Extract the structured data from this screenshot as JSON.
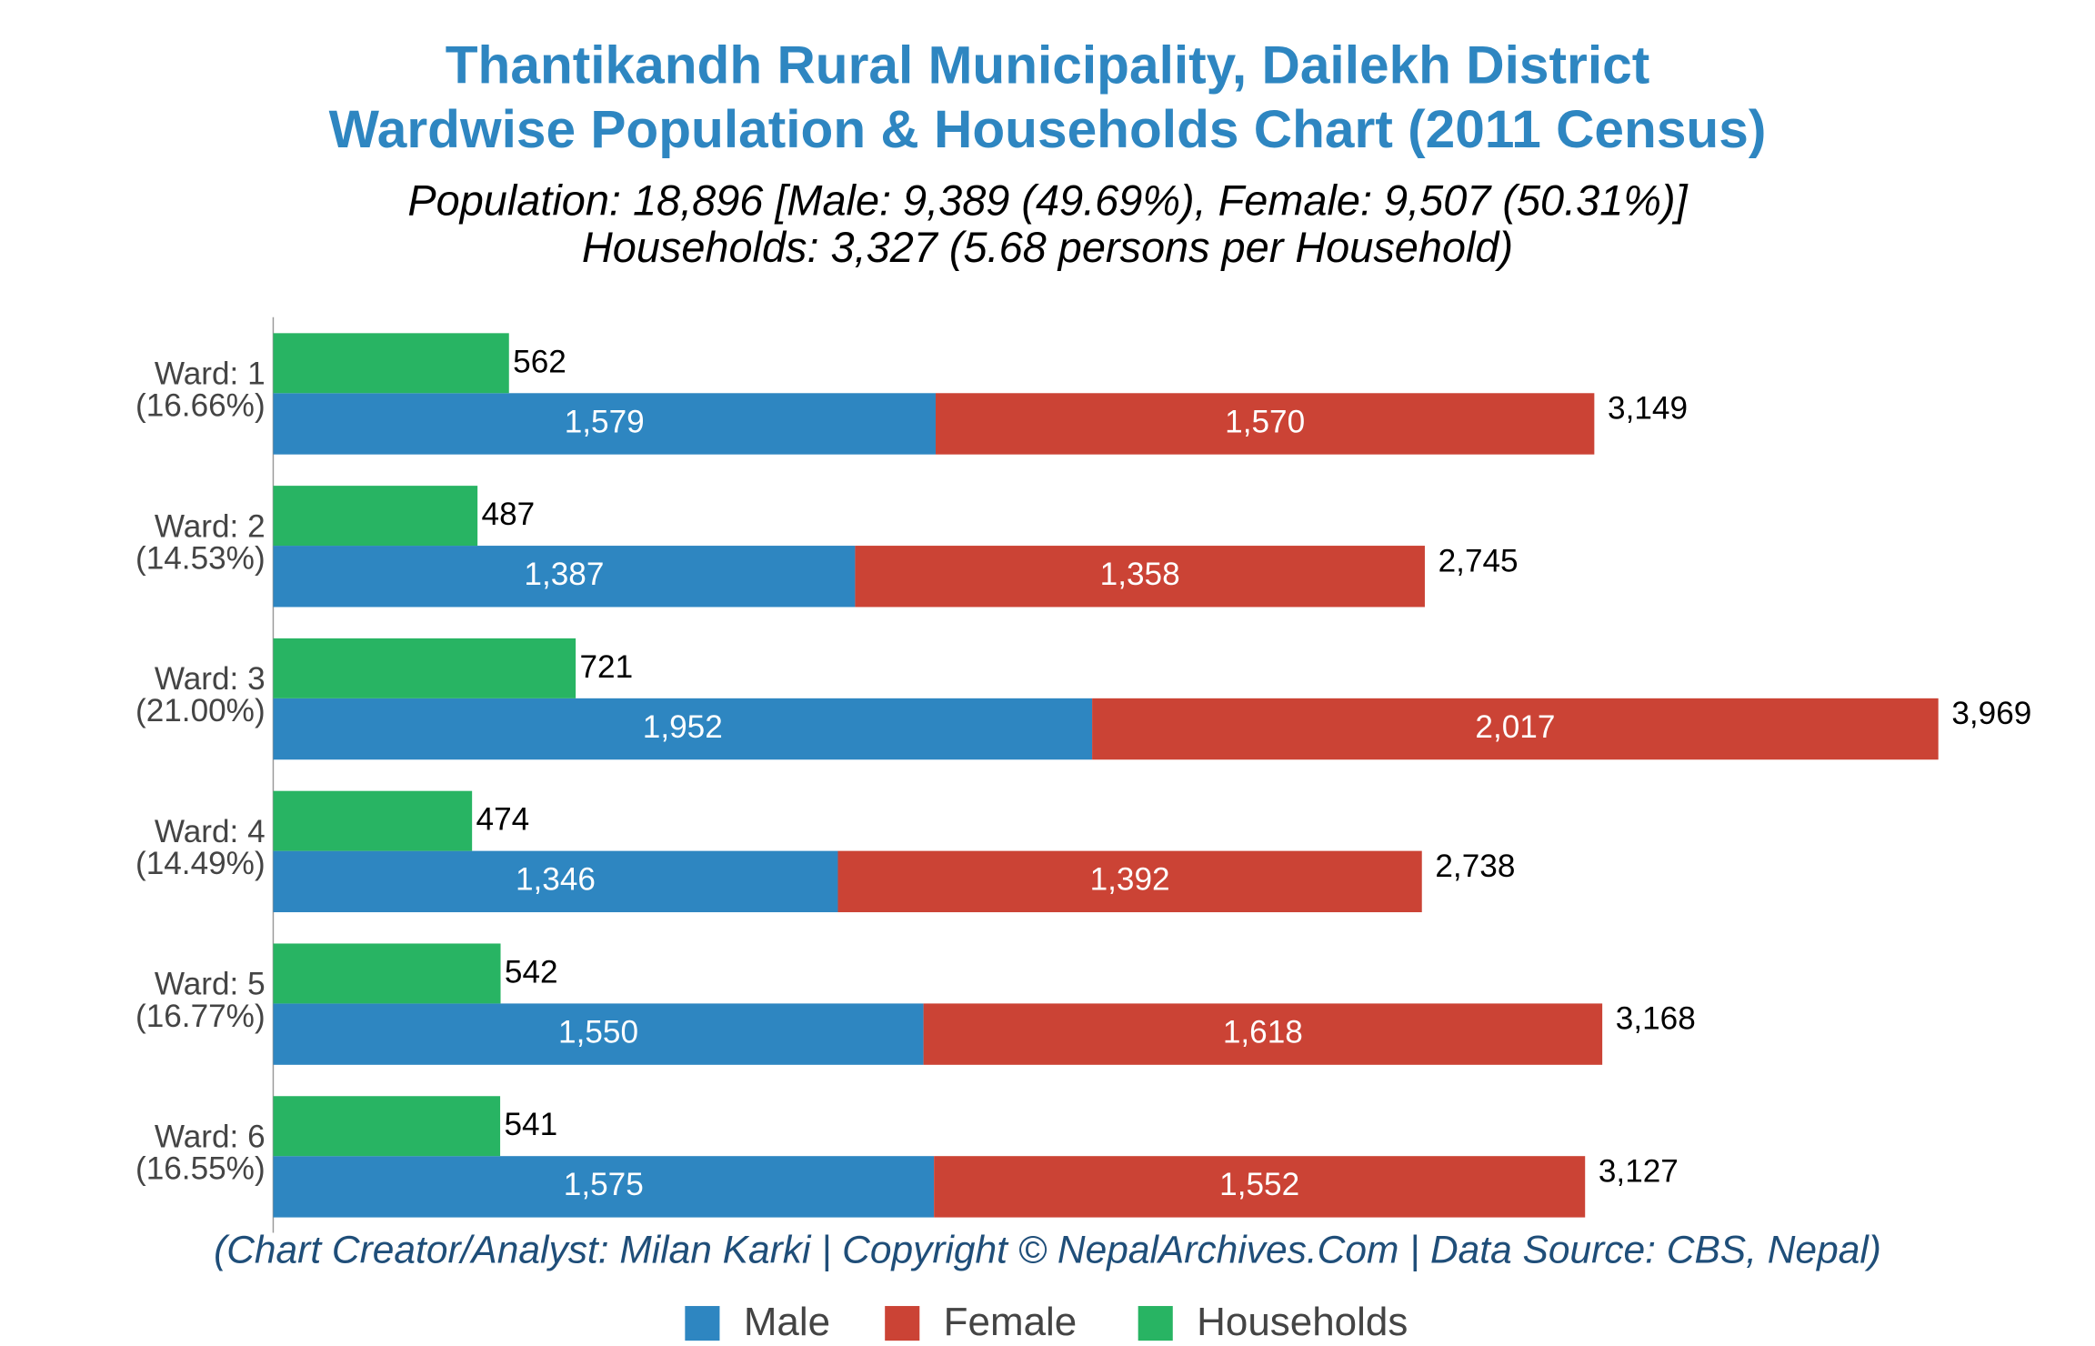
{
  "chart_data": {
    "type": "bar",
    "orientation": "horizontal",
    "title": [
      "Thantikandh Rural Municipality, Dailekh District",
      "Wardwise Population & Households Chart (2011 Census)"
    ],
    "subtitle": [
      "Population: 18,896 [Male: 9,389 (49.69%), Female: 9,507 (50.31%)]",
      "Households: 3,327 (5.68 persons per Household)"
    ],
    "footer": "(Chart Creator/Analyst: Milan Karki | Copyright © NepalArchives.Com | Data Source: CBS, Nepal)",
    "categories": [
      "Ward: 1",
      "Ward: 2",
      "Ward: 3",
      "Ward: 4",
      "Ward: 5",
      "Ward: 6"
    ],
    "category_shares": [
      "(16.66%)",
      "(14.53%)",
      "(21.00%)",
      "(14.49%)",
      "(16.77%)",
      "(16.55%)"
    ],
    "series": [
      {
        "name": "Male",
        "color": "#2e86c1",
        "stack": "population",
        "values": [
          1579,
          1387,
          1952,
          1346,
          1550,
          1575
        ],
        "value_labels": [
          "1,579",
          "1,387",
          "1,952",
          "1,346",
          "1,550",
          "1,575"
        ]
      },
      {
        "name": "Female",
        "color": "#cb4335",
        "stack": "population",
        "values": [
          1570,
          1358,
          2017,
          1392,
          1618,
          1552
        ],
        "value_labels": [
          "1,570",
          "1,358",
          "2,017",
          "1,392",
          "1,618",
          "1,552"
        ]
      },
      {
        "name": "Households",
        "color": "#28b463",
        "stack": "households",
        "values": [
          562,
          487,
          721,
          474,
          542,
          541
        ]
      }
    ],
    "totals": [
      3149,
      2745,
      3969,
      2738,
      3168,
      3127
    ],
    "total_labels": [
      "3,149",
      "2,745",
      "3,969",
      "2,738",
      "3,168",
      "3,127"
    ],
    "xlim": [
      0,
      4200
    ],
    "legend": "bottom"
  }
}
